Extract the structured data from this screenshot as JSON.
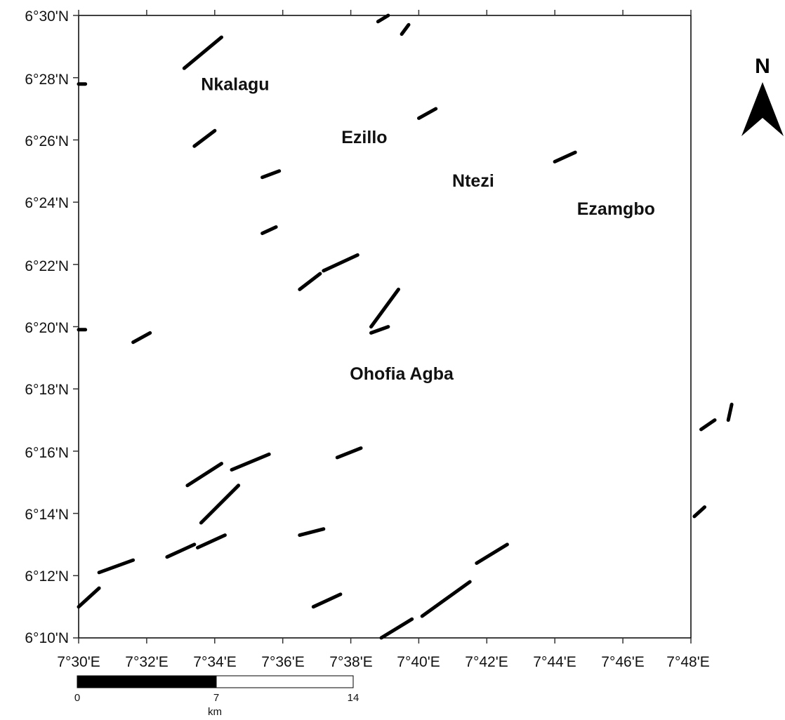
{
  "map": {
    "y_axis_labels": [
      "6°30'N",
      "6°28'N",
      "6°26'N",
      "6°24'N",
      "6°22'N",
      "6°20'N",
      "6°18'N",
      "6°16'N",
      "6°14'N",
      "6°12'N",
      "6°10'N"
    ],
    "x_axis_labels": [
      "7°30'E",
      "7°32'E",
      "7°34'E",
      "7°36'E",
      "7°38'E",
      "7°40'E",
      "7°42'E",
      "7°44'E",
      "7°46'E",
      "7°48'E"
    ],
    "places": [
      {
        "name": "Nkalagu",
        "lon": 7.5767,
        "lat": 6.4633
      },
      {
        "name": "Ezillo",
        "lon": 7.64,
        "lat": 6.435
      },
      {
        "name": "Ntezi",
        "lon": 7.6933,
        "lat": 6.4117
      },
      {
        "name": "Ezamgbo",
        "lon": 7.7633,
        "lat": 6.3967
      },
      {
        "name": "Ohofia Agba",
        "lon": 7.6583,
        "lat": 6.3083
      }
    ],
    "lineaments": [
      [
        [
          7.5517,
          6.4717
        ],
        [
          7.57,
          6.4883
        ]
      ],
      [
        [
          7.5567,
          6.43
        ],
        [
          7.5667,
          6.4383
        ]
      ],
      [
        [
          7.59,
          6.4133
        ],
        [
          7.5983,
          6.4167
        ]
      ],
      [
        [
          7.59,
          6.3833
        ],
        [
          7.5967,
          6.3867
        ]
      ],
      [
        [
          7.6083,
          6.3533
        ],
        [
          7.6183,
          6.3617
        ]
      ],
      [
        [
          7.62,
          6.3633
        ],
        [
          7.6367,
          6.3717
        ]
      ],
      [
        [
          7.6433,
          6.3333
        ],
        [
          7.6567,
          6.3533
        ]
      ],
      [
        [
          7.6433,
          6.33
        ],
        [
          7.6517,
          6.3333
        ]
      ],
      [
        [
          7.5267,
          6.325
        ],
        [
          7.535,
          6.33
        ]
      ],
      [
        [
          7.5,
          6.3317
        ],
        [
          7.5033,
          6.3317
        ]
      ],
      [
        [
          7.5,
          6.4633
        ],
        [
          7.5033,
          6.4633
        ]
      ],
      [
        [
          7.6467,
          6.4967
        ],
        [
          7.6517,
          6.5
        ]
      ],
      [
        [
          7.6583,
          6.49
        ],
        [
          7.6617,
          6.495
        ]
      ],
      [
        [
          7.6667,
          6.445
        ],
        [
          7.675,
          6.45
        ]
      ],
      [
        [
          7.7333,
          6.4217
        ],
        [
          7.7433,
          6.4267
        ]
      ],
      [
        [
          7.5533,
          6.2483
        ],
        [
          7.57,
          6.26
        ]
      ],
      [
        [
          7.56,
          6.2283
        ],
        [
          7.5783,
          6.2483
        ]
      ],
      [
        [
          7.575,
          6.2567
        ],
        [
          7.5933,
          6.265
        ]
      ],
      [
        [
          7.6267,
          6.2633
        ],
        [
          7.6383,
          6.2683
        ]
      ],
      [
        [
          7.6083,
          6.2217
        ],
        [
          7.62,
          6.225
        ]
      ],
      [
        [
          7.5433,
          6.21
        ],
        [
          7.5567,
          6.2167
        ]
      ],
      [
        [
          7.5583,
          6.215
        ],
        [
          7.5717,
          6.2217
        ]
      ],
      [
        [
          7.51,
          6.2017
        ],
        [
          7.5267,
          6.2083
        ]
      ],
      [
        [
          7.5,
          6.1833
        ],
        [
          7.51,
          6.1933
        ]
      ],
      [
        [
          7.615,
          6.1833
        ],
        [
          7.6283,
          6.19
        ]
      ],
      [
        [
          7.6483,
          6.1667
        ],
        [
          7.6633,
          6.1767
        ]
      ],
      [
        [
          7.6683,
          6.1783
        ],
        [
          7.6917,
          6.1967
        ]
      ],
      [
        [
          7.695,
          6.2067
        ],
        [
          7.71,
          6.2167
        ]
      ],
      [
        [
          7.805,
          6.2783
        ],
        [
          7.8117,
          6.2833
        ]
      ],
      [
        [
          7.8183,
          6.2833
        ],
        [
          7.82,
          6.2917
        ]
      ],
      [
        [
          7.8017,
          6.2317
        ],
        [
          7.8067,
          6.2367
        ]
      ]
    ]
  },
  "north_arrow": {
    "label": "N"
  },
  "scale_bar": {
    "labels": [
      "0",
      "7",
      "14"
    ],
    "unit": "km"
  }
}
